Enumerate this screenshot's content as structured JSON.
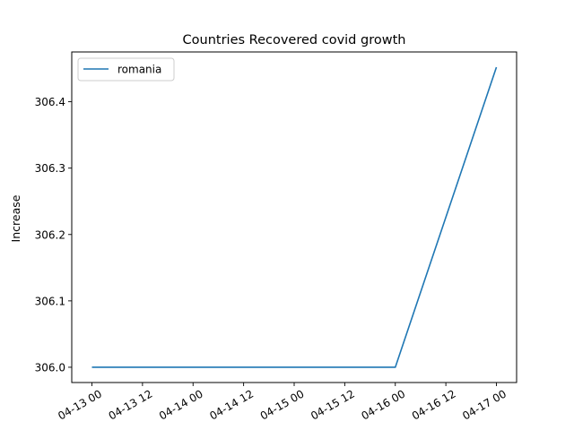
{
  "chart_data": {
    "type": "line",
    "title": "Countries Recovered covid growth",
    "xlabel": "",
    "ylabel": "Increase",
    "x_tick_labels": [
      "04-13 00",
      "04-13 12",
      "04-14 00",
      "04-14 12",
      "04-15 00",
      "04-15 12",
      "04-16 00",
      "04-16 12",
      "04-17 00"
    ],
    "y_ticks": [
      306.0,
      306.1,
      306.2,
      306.3,
      306.4
    ],
    "ylim": [
      305.977,
      306.475
    ],
    "x_range": [
      "04-13 00",
      "04-17 00"
    ],
    "series": [
      {
        "name": "romania",
        "color": "#1f77b4",
        "x": [
          "04-13 00",
          "04-14 00",
          "04-15 00",
          "04-16 00",
          "04-17 00"
        ],
        "values": [
          306.0,
          306.0,
          306.0,
          306.0,
          306.452
        ]
      }
    ],
    "legend": {
      "placement": "upper-left"
    },
    "grid": false
  }
}
